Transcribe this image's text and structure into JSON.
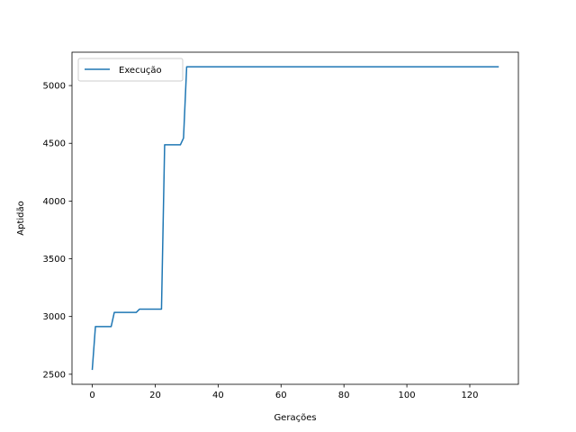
{
  "chart_data": {
    "type": "line",
    "title": "",
    "xlabel": "Gerações",
    "ylabel": "Aptidão",
    "xlim": [
      -6.45,
      135.45
    ],
    "ylim": [
      2413,
      5289
    ],
    "xticks": [
      0,
      20,
      40,
      60,
      80,
      100,
      120
    ],
    "yticks": [
      2500,
      3000,
      3500,
      4000,
      4500,
      5000
    ],
    "grid": false,
    "legend_position": "upper-left",
    "series": [
      {
        "name": "Execução",
        "color": "#1f77b4",
        "x": [
          0,
          1,
          6,
          7,
          14,
          15,
          22,
          23,
          28,
          29,
          30,
          129
        ],
        "y": [
          2543,
          2913,
          2913,
          3036,
          3036,
          3064,
          3064,
          4487,
          4487,
          4545,
          5162,
          5162
        ]
      }
    ]
  }
}
